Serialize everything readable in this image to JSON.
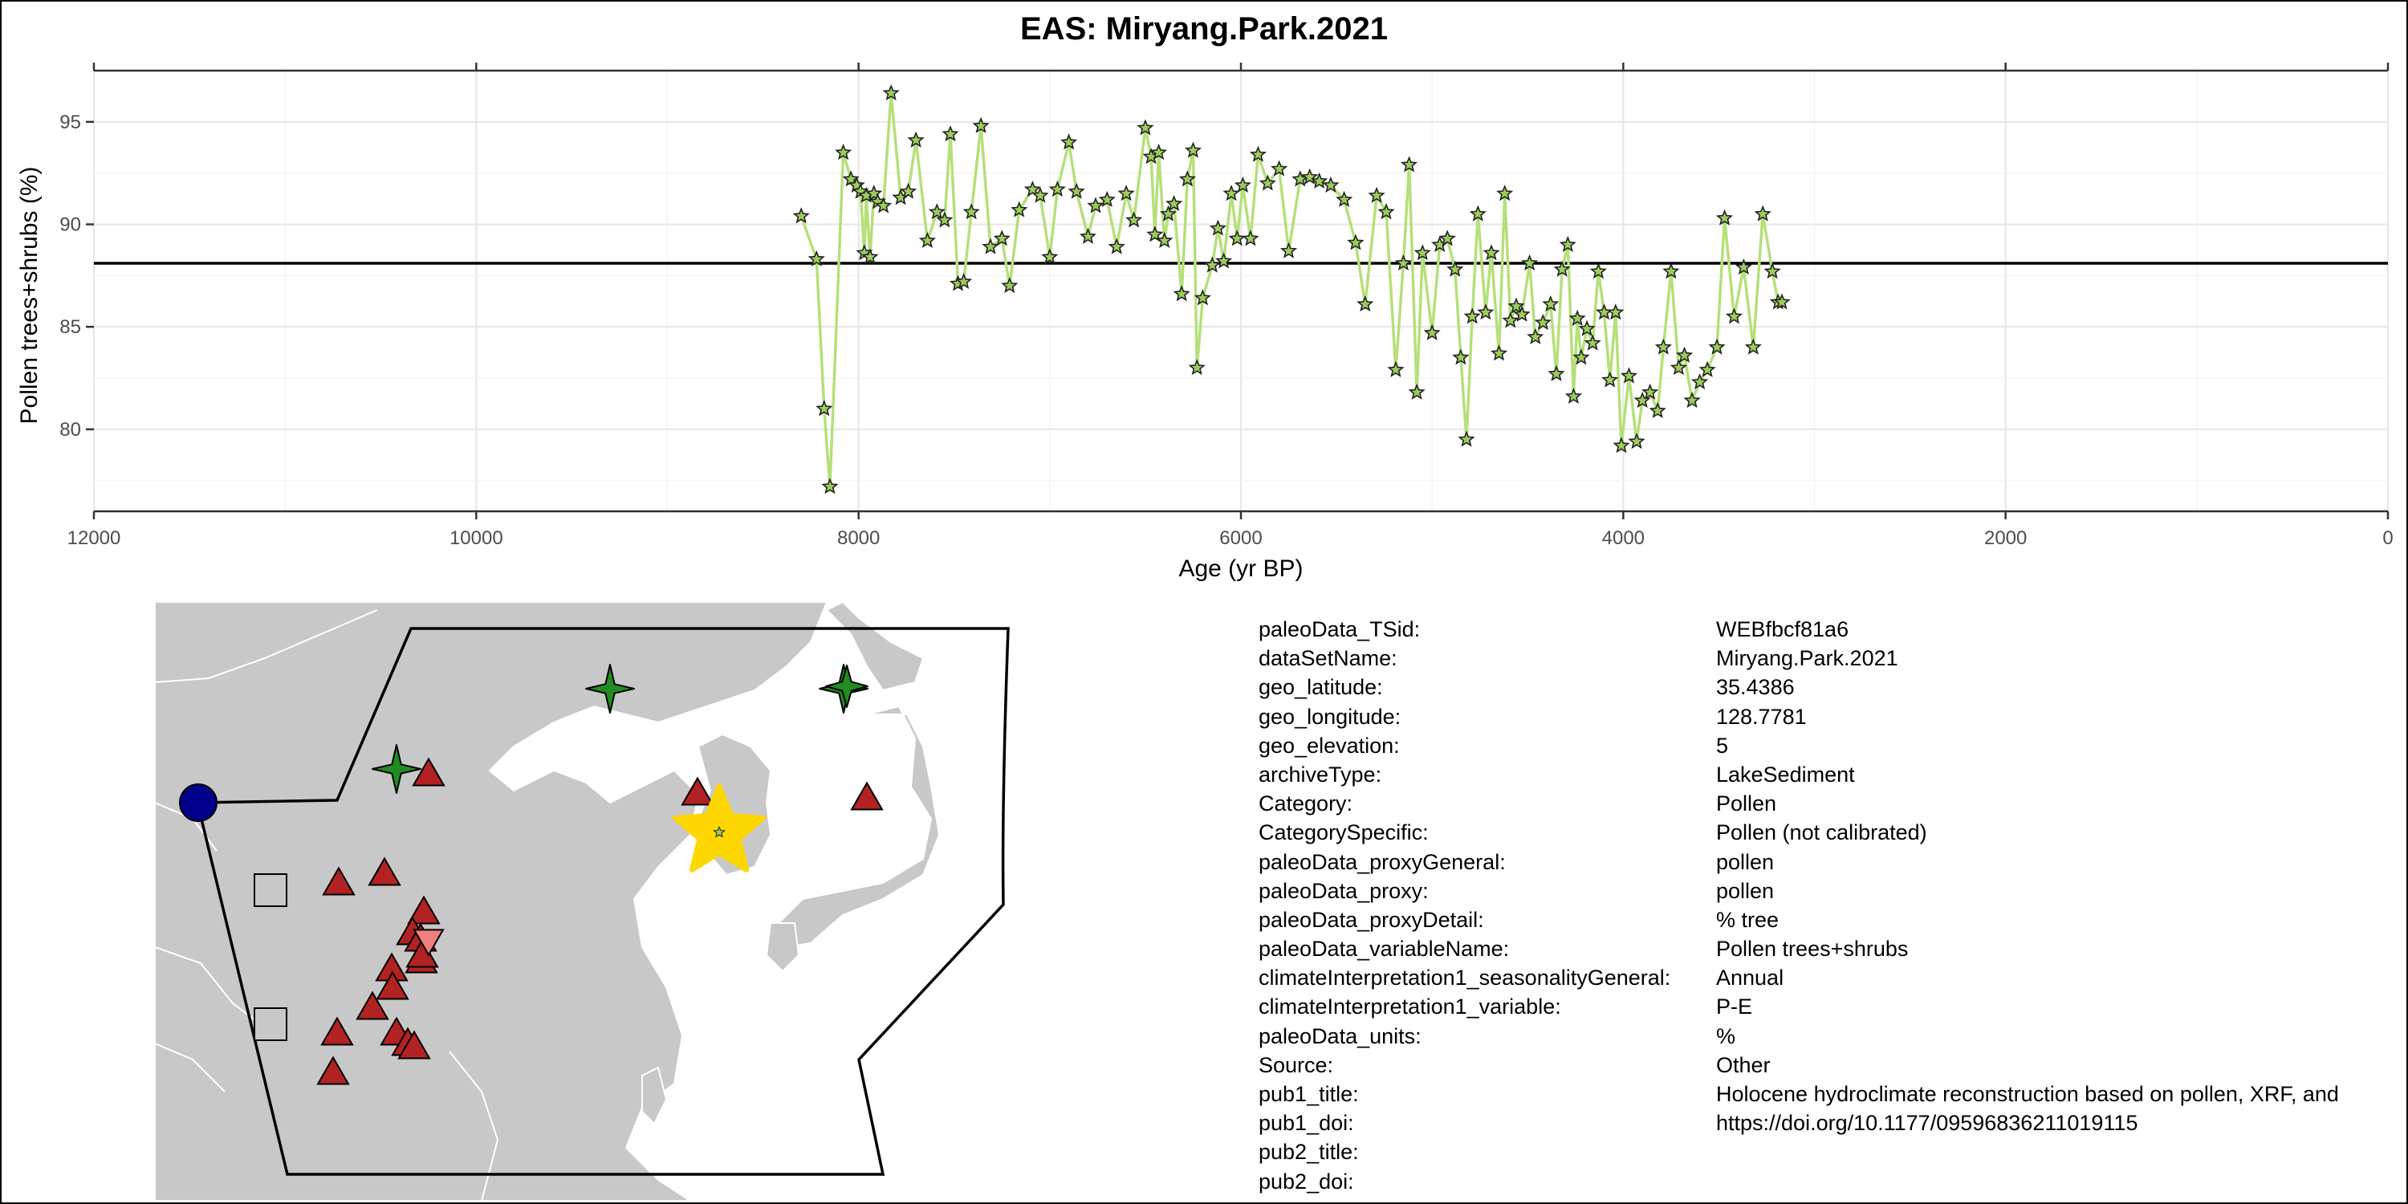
{
  "title": "EAS: Miryang.Park.2021",
  "chart_data": {
    "type": "line",
    "title": "EAS: Miryang.Park.2021",
    "xlabel": "Age (yr BP)",
    "ylabel": "Pollen trees+shrubs (%)",
    "xlim": [
      12000,
      0
    ],
    "x_reversed": true,
    "ylim": [
      76,
      97.5
    ],
    "x_ticks": [
      12000,
      10000,
      8000,
      6000,
      4000,
      2000,
      0
    ],
    "y_ticks": [
      80,
      85,
      90,
      95
    ],
    "grid": true,
    "reference_line_y": 88.1,
    "line_color": "#b5e07a",
    "marker": "star",
    "marker_fill": "#9acd5a",
    "reference_line_color": "#000000",
    "series": [
      {
        "x": [
          8300,
          8220,
          8180,
          8150,
          8080,
          8040,
          8010,
          7990,
          7970,
          7960,
          7940,
          7920,
          7900,
          7870,
          7830,
          7780,
          7740,
          7700,
          7640,
          7590,
          7550,
          7520,
          7480,
          7450,
          7410,
          7360,
          7310,
          7250,
          7210,
          7160,
          7090,
          7050,
          7000,
          6960,
          6900,
          6860,
          6800,
          6760,
          6700,
          6650,
          6600,
          6560,
          6500,
          6470,
          6450,
          6430,
          6400,
          6380,
          6350,
          6310,
          6280,
          6250,
          6230,
          6200,
          6150,
          6120,
          6090,
          6050,
          6020,
          5990,
          5950,
          5910,
          5860,
          5800,
          5750,
          5690,
          5640,
          5590,
          5530,
          5460,
          5400,
          5350,
          5290,
          5240,
          5190,
          5150,
          5120,
          5080,
          5050,
          5000,
          4960,
          4920,
          4880,
          4850,
          4820,
          4790,
          4760,
          4720,
          4690,
          4650,
          4620,
          4590,
          4560,
          4530,
          4490,
          4460,
          4420,
          4380,
          4350,
          4320,
          4290,
          4260,
          4240,
          4220,
          4190,
          4160,
          4130,
          4100,
          4070,
          4040,
          4010,
          3970,
          3930,
          3900,
          3860,
          3820,
          3790,
          3750,
          3710,
          3680,
          3640,
          3600,
          3560,
          3510,
          3470,
          3420,
          3370,
          3320,
          3270,
          3220,
          3190,
          3170
        ],
        "y": [
          90.4,
          88.3,
          81.0,
          77.2,
          93.5,
          92.2,
          91.9,
          91.6,
          88.6,
          91.4,
          88.4,
          91.5,
          91.1,
          90.9,
          96.4,
          91.3,
          91.6,
          94.1,
          89.2,
          90.6,
          90.2,
          94.4,
          87.1,
          87.2,
          90.6,
          94.8,
          88.9,
          89.3,
          87.0,
          90.7,
          91.7,
          91.4,
          88.4,
          91.7,
          94.0,
          91.6,
          89.4,
          90.9,
          91.2,
          88.9,
          91.5,
          90.2,
          94.7,
          93.3,
          89.5,
          93.5,
          89.2,
          90.5,
          91.0,
          86.6,
          92.2,
          93.6,
          83.0,
          86.4,
          88.0,
          89.8,
          88.2,
          91.5,
          89.3,
          91.9,
          89.3,
          93.4,
          92.0,
          92.7,
          88.7,
          92.2,
          92.3,
          92.1,
          91.9,
          91.2,
          89.1,
          86.1,
          91.4,
          90.6,
          82.9,
          88.1,
          92.9,
          81.8,
          88.6,
          84.7,
          89.0,
          89.3,
          87.8,
          83.5,
          79.5,
          85.5,
          90.5,
          85.7,
          88.6,
          83.7,
          91.5,
          85.3,
          86.0,
          85.6,
          88.1,
          84.5,
          85.2,
          86.1,
          82.7,
          87.8,
          89.0,
          81.6,
          85.4,
          83.5,
          84.9,
          84.2,
          87.7,
          85.7,
          82.4,
          85.7,
          79.2,
          82.6,
          79.4,
          81.4,
          81.8,
          80.9,
          84.0,
          87.7,
          83.0,
          83.6,
          81.4,
          82.3,
          82.9,
          84.0,
          90.3,
          85.5,
          87.9,
          84.0,
          90.5,
          87.7,
          86.2,
          86.2
        ]
      }
    ]
  },
  "map": {
    "markers": [
      {
        "type": "circle",
        "color": "#00008b"
      },
      {
        "type": "square",
        "color": "#c8c8c8"
      },
      {
        "type": "square",
        "color": "#c8c8c8"
      },
      {
        "type": "star4",
        "color": "#228b22"
      },
      {
        "type": "star4",
        "color": "#228b22"
      },
      {
        "type": "star4",
        "color": "#228b22"
      },
      {
        "type": "triangle",
        "color": "#b22222"
      },
      {
        "type": "triangle-down",
        "color": "#f08080"
      },
      {
        "type": "star5-highlight",
        "color": "#ffd700"
      }
    ]
  },
  "metadata": [
    {
      "key": "paleoData_TSid:",
      "value": "WEBfbcf81a6"
    },
    {
      "key": "dataSetName:",
      "value": "Miryang.Park.2021"
    },
    {
      "key": "geo_latitude:",
      "value": "35.4386"
    },
    {
      "key": "geo_longitude:",
      "value": "128.7781"
    },
    {
      "key": "geo_elevation:",
      "value": "5"
    },
    {
      "key": "archiveType:",
      "value": "LakeSediment"
    },
    {
      "key": "Category:",
      "value": "Pollen"
    },
    {
      "key": "CategorySpecific:",
      "value": "Pollen (not calibrated)"
    },
    {
      "key": "paleoData_proxyGeneral:",
      "value": "pollen"
    },
    {
      "key": "paleoData_proxy:",
      "value": "pollen"
    },
    {
      "key": "paleoData_proxyDetail:",
      "value": "% tree"
    },
    {
      "key": "paleoData_variableName:",
      "value": "Pollen trees+shrubs"
    },
    {
      "key": "climateInterpretation1_seasonalityGeneral:",
      "value": "Annual"
    },
    {
      "key": "climateInterpretation1_variable:",
      "value": "P-E"
    },
    {
      "key": "paleoData_units:",
      "value": "%"
    },
    {
      "key": "Source:",
      "value": "Other"
    },
    {
      "key": "pub1_title:",
      "value": "Holocene hydroclimate reconstruction based on pollen, XRF, and"
    },
    {
      "key": "pub1_doi:",
      "value": "https://doi.org/10.1177/09596836211019115"
    },
    {
      "key": "pub2_title:",
      "value": ""
    },
    {
      "key": "pub2_doi:",
      "value": ""
    }
  ]
}
